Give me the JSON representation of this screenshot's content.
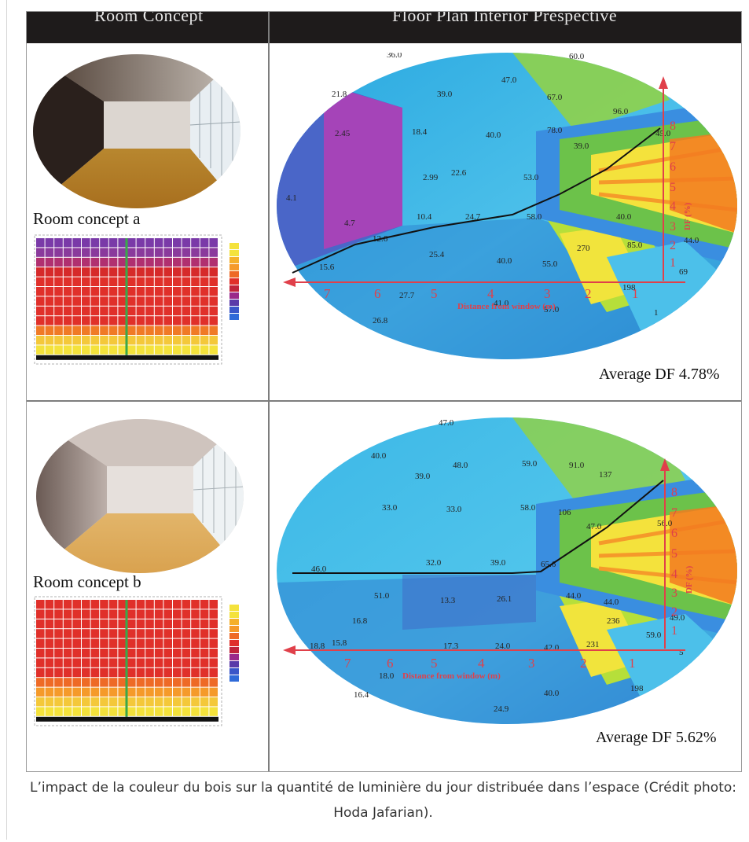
{
  "header": {
    "col1": "Room Concept",
    "col2": "Floor Plan Interior Prespective"
  },
  "concept_a": {
    "label": "Room concept a",
    "average": "Average DF 4.78%",
    "values": [
      {
        "v": "36.0"
      },
      {
        "v": "60.0"
      },
      {
        "v": "21.8"
      },
      {
        "v": "39.0"
      },
      {
        "v": "47.0"
      },
      {
        "v": "67.0"
      },
      {
        "v": "96.0"
      },
      {
        "v": "2.45"
      },
      {
        "v": "18.4"
      },
      {
        "v": "40.0"
      },
      {
        "v": "78.0"
      },
      {
        "v": "39.0"
      },
      {
        "v": "45.0"
      },
      {
        "v": "2.99"
      },
      {
        "v": "22.6"
      },
      {
        "v": "53.0"
      },
      {
        "v": "4.1"
      },
      {
        "v": "10.4"
      },
      {
        "v": "24.7"
      },
      {
        "v": "58.0"
      },
      {
        "v": "40.0"
      },
      {
        "v": "4.7"
      },
      {
        "v": "12.6"
      },
      {
        "v": "270"
      },
      {
        "v": "85.0"
      },
      {
        "v": "44.0"
      },
      {
        "v": "25.4"
      },
      {
        "v": "40.0"
      },
      {
        "v": "55.0"
      },
      {
        "v": "15.6"
      },
      {
        "v": "69"
      },
      {
        "v": "198"
      },
      {
        "v": "27.7"
      },
      {
        "v": "41.0"
      },
      {
        "v": "57.0"
      },
      {
        "v": "26.8"
      },
      {
        "v": "1"
      }
    ],
    "x_ticks": [
      "7",
      "6",
      "5",
      "4",
      "3",
      "2",
      "1"
    ],
    "y_ticks": [
      "1",
      "2",
      "3",
      "4",
      "5",
      "6",
      "7",
      "8"
    ],
    "x_axis_label": "Distance from window (m)",
    "y_axis_label": "DF (%)"
  },
  "concept_b": {
    "label": "Room concept b",
    "average": "Average DF 5.62%",
    "values": [
      {
        "v": "47.0"
      },
      {
        "v": "40.0"
      },
      {
        "v": "48.0"
      },
      {
        "v": "59.0"
      },
      {
        "v": "91.0"
      },
      {
        "v": "39.0"
      },
      {
        "v": "137"
      },
      {
        "v": "33.0"
      },
      {
        "v": "33.0"
      },
      {
        "v": "58.0"
      },
      {
        "v": "106"
      },
      {
        "v": "56.0"
      },
      {
        "v": "47.0"
      },
      {
        "v": "46.0"
      },
      {
        "v": "32.0"
      },
      {
        "v": "39.0"
      },
      {
        "v": "65.6"
      },
      {
        "v": "51.0"
      },
      {
        "v": "13.3"
      },
      {
        "v": "26.1"
      },
      {
        "v": "44.0"
      },
      {
        "v": "44.0"
      },
      {
        "v": "16.8"
      },
      {
        "v": "236"
      },
      {
        "v": "49.0"
      },
      {
        "v": "59.0"
      },
      {
        "v": "18.8"
      },
      {
        "v": "15.8"
      },
      {
        "v": "17.3"
      },
      {
        "v": "24.0"
      },
      {
        "v": "42.0"
      },
      {
        "v": "231"
      },
      {
        "v": "5"
      },
      {
        "v": "18.0"
      },
      {
        "v": "16.4"
      },
      {
        "v": "40.0"
      },
      {
        "v": "198"
      },
      {
        "v": "24.9"
      }
    ],
    "x_ticks": [
      "7",
      "6",
      "5",
      "4",
      "3",
      "2",
      "1"
    ],
    "y_ticks": [
      "1",
      "2",
      "3",
      "4",
      "5",
      "6",
      "7",
      "8"
    ],
    "x_axis_label": "Distance from window (m)",
    "y_axis_label": "DF (%)"
  },
  "caption": "L’impact de la couleur du bois sur la quantité de luminière du jour distribuée dans l’espace (Crédit photo: Hoda Jafarian).",
  "colors": {
    "header_bg": "#1e1b1b",
    "axis_red": "#e0404a",
    "cyan": "#2fb3e6",
    "green": "#6cc24a",
    "yellow": "#f4e23c",
    "orange": "#f59a2a",
    "purple": "#b040b8"
  }
}
